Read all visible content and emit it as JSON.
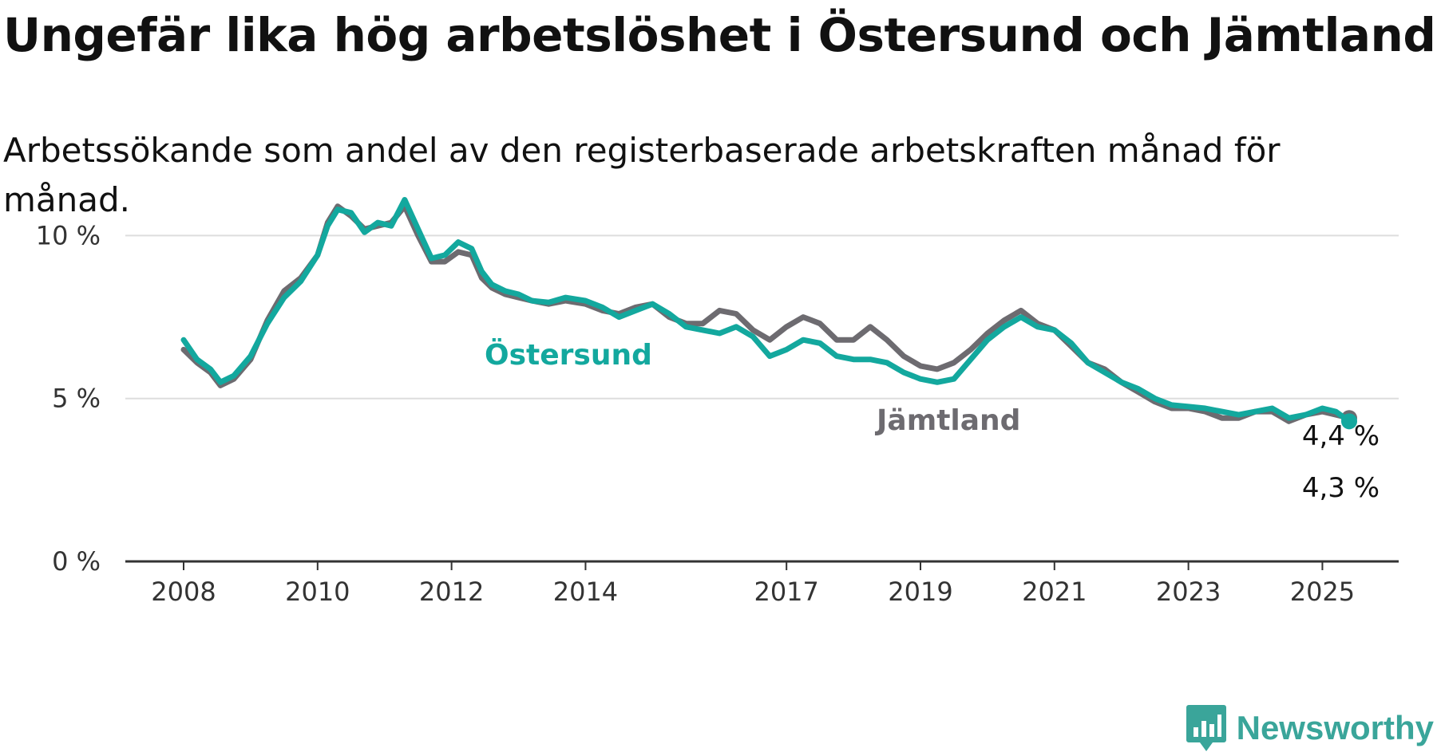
{
  "title": "Ungefär lika hög arbetslöshet i Östersund och Jämtland",
  "subtitle": "Arbetssökande som andel av den registerbaserade arbetskraften månad för månad.",
  "brand": {
    "name": "Newsworthy",
    "color": "#3aa59a",
    "icon": "bar-chart-badge-icon"
  },
  "colors": {
    "ostersund": "#13a89e",
    "jamtland": "#6d6b70",
    "grid": "#dddddd",
    "axis": "#333333"
  },
  "chart_data": {
    "type": "line",
    "xlim": [
      2008.0,
      2025.4
    ],
    "ylim": [
      0,
      10.5
    ],
    "grid": true,
    "y_ticks": [
      0,
      5,
      10
    ],
    "y_tick_labels": [
      "0 %",
      "5 %",
      "10 %"
    ],
    "x_ticks": [
      2008,
      2010,
      2012,
      2014,
      2017,
      2019,
      2021,
      2023,
      2025
    ],
    "x_tick_labels": [
      "2008",
      "2010",
      "2012",
      "2014",
      "2017",
      "2019",
      "2021",
      "2023",
      "2025"
    ],
    "series": [
      {
        "name": "Östersund",
        "key": "ostersund",
        "end_label": "4,3 %",
        "points": [
          [
            2008.0,
            6.8
          ],
          [
            2008.2,
            6.2
          ],
          [
            2008.4,
            5.9
          ],
          [
            2008.55,
            5.5
          ],
          [
            2008.75,
            5.7
          ],
          [
            2009.0,
            6.3
          ],
          [
            2009.25,
            7.3
          ],
          [
            2009.5,
            8.1
          ],
          [
            2009.75,
            8.6
          ],
          [
            2010.0,
            9.4
          ],
          [
            2010.15,
            10.3
          ],
          [
            2010.3,
            10.8
          ],
          [
            2010.5,
            10.7
          ],
          [
            2010.7,
            10.1
          ],
          [
            2010.9,
            10.4
          ],
          [
            2011.1,
            10.3
          ],
          [
            2011.3,
            11.1
          ],
          [
            2011.5,
            10.2
          ],
          [
            2011.7,
            9.3
          ],
          [
            2011.9,
            9.4
          ],
          [
            2012.1,
            9.8
          ],
          [
            2012.3,
            9.6
          ],
          [
            2012.45,
            8.9
          ],
          [
            2012.6,
            8.5
          ],
          [
            2012.8,
            8.3
          ],
          [
            2013.0,
            8.2
          ],
          [
            2013.2,
            8.0
          ],
          [
            2013.45,
            7.95
          ],
          [
            2013.7,
            8.1
          ],
          [
            2014.0,
            8.0
          ],
          [
            2014.25,
            7.8
          ],
          [
            2014.5,
            7.5
          ],
          [
            2014.75,
            7.7
          ],
          [
            2015.0,
            7.9
          ],
          [
            2015.25,
            7.6
          ],
          [
            2015.5,
            7.2
          ],
          [
            2015.75,
            7.1
          ],
          [
            2016.0,
            7.0
          ],
          [
            2016.25,
            7.2
          ],
          [
            2016.5,
            6.9
          ],
          [
            2016.75,
            6.3
          ],
          [
            2017.0,
            6.5
          ],
          [
            2017.25,
            6.8
          ],
          [
            2017.5,
            6.7
          ],
          [
            2017.75,
            6.3
          ],
          [
            2018.0,
            6.2
          ],
          [
            2018.25,
            6.2
          ],
          [
            2018.5,
            6.1
          ],
          [
            2018.75,
            5.8
          ],
          [
            2019.0,
            5.6
          ],
          [
            2019.25,
            5.5
          ],
          [
            2019.5,
            5.6
          ],
          [
            2019.75,
            6.2
          ],
          [
            2020.0,
            6.8
          ],
          [
            2020.25,
            7.2
          ],
          [
            2020.5,
            7.5
          ],
          [
            2020.75,
            7.2
          ],
          [
            2021.0,
            7.1
          ],
          [
            2021.25,
            6.7
          ],
          [
            2021.5,
            6.1
          ],
          [
            2021.75,
            5.8
          ],
          [
            2022.0,
            5.5
          ],
          [
            2022.25,
            5.3
          ],
          [
            2022.5,
            5.0
          ],
          [
            2022.75,
            4.8
          ],
          [
            2023.0,
            4.75
          ],
          [
            2023.25,
            4.7
          ],
          [
            2023.5,
            4.6
          ],
          [
            2023.75,
            4.5
          ],
          [
            2024.0,
            4.6
          ],
          [
            2024.25,
            4.7
          ],
          [
            2024.5,
            4.4
          ],
          [
            2024.75,
            4.5
          ],
          [
            2025.0,
            4.7
          ],
          [
            2025.2,
            4.6
          ],
          [
            2025.4,
            4.3
          ]
        ]
      },
      {
        "name": "Jämtland",
        "key": "jamtland",
        "end_label": "4,4 %",
        "points": [
          [
            2008.0,
            6.5
          ],
          [
            2008.2,
            6.1
          ],
          [
            2008.4,
            5.8
          ],
          [
            2008.55,
            5.4
          ],
          [
            2008.75,
            5.6
          ],
          [
            2009.0,
            6.2
          ],
          [
            2009.25,
            7.4
          ],
          [
            2009.5,
            8.3
          ],
          [
            2009.75,
            8.7
          ],
          [
            2010.0,
            9.4
          ],
          [
            2010.15,
            10.4
          ],
          [
            2010.3,
            10.9
          ],
          [
            2010.5,
            10.6
          ],
          [
            2010.7,
            10.2
          ],
          [
            2010.9,
            10.3
          ],
          [
            2011.1,
            10.4
          ],
          [
            2011.3,
            10.9
          ],
          [
            2011.5,
            10.0
          ],
          [
            2011.7,
            9.2
          ],
          [
            2011.9,
            9.2
          ],
          [
            2012.1,
            9.5
          ],
          [
            2012.3,
            9.4
          ],
          [
            2012.45,
            8.7
          ],
          [
            2012.6,
            8.4
          ],
          [
            2012.8,
            8.2
          ],
          [
            2013.0,
            8.1
          ],
          [
            2013.2,
            8.0
          ],
          [
            2013.45,
            7.9
          ],
          [
            2013.7,
            8.0
          ],
          [
            2014.0,
            7.9
          ],
          [
            2014.25,
            7.7
          ],
          [
            2014.5,
            7.6
          ],
          [
            2014.75,
            7.8
          ],
          [
            2015.0,
            7.9
          ],
          [
            2015.25,
            7.5
          ],
          [
            2015.5,
            7.3
          ],
          [
            2015.75,
            7.3
          ],
          [
            2016.0,
            7.7
          ],
          [
            2016.25,
            7.6
          ],
          [
            2016.5,
            7.1
          ],
          [
            2016.75,
            6.8
          ],
          [
            2017.0,
            7.2
          ],
          [
            2017.25,
            7.5
          ],
          [
            2017.5,
            7.3
          ],
          [
            2017.75,
            6.8
          ],
          [
            2018.0,
            6.8
          ],
          [
            2018.25,
            7.2
          ],
          [
            2018.5,
            6.8
          ],
          [
            2018.75,
            6.3
          ],
          [
            2019.0,
            6.0
          ],
          [
            2019.25,
            5.9
          ],
          [
            2019.5,
            6.1
          ],
          [
            2019.75,
            6.5
          ],
          [
            2020.0,
            7.0
          ],
          [
            2020.25,
            7.4
          ],
          [
            2020.5,
            7.7
          ],
          [
            2020.75,
            7.3
          ],
          [
            2021.0,
            7.1
          ],
          [
            2021.25,
            6.6
          ],
          [
            2021.5,
            6.1
          ],
          [
            2021.75,
            5.9
          ],
          [
            2022.0,
            5.5
          ],
          [
            2022.25,
            5.2
          ],
          [
            2022.5,
            4.9
          ],
          [
            2022.75,
            4.7
          ],
          [
            2023.0,
            4.7
          ],
          [
            2023.25,
            4.6
          ],
          [
            2023.5,
            4.4
          ],
          [
            2023.75,
            4.4
          ],
          [
            2024.0,
            4.6
          ],
          [
            2024.25,
            4.6
          ],
          [
            2024.5,
            4.3
          ],
          [
            2024.75,
            4.5
          ],
          [
            2025.0,
            4.6
          ],
          [
            2025.2,
            4.5
          ],
          [
            2025.4,
            4.4
          ]
        ]
      }
    ]
  }
}
